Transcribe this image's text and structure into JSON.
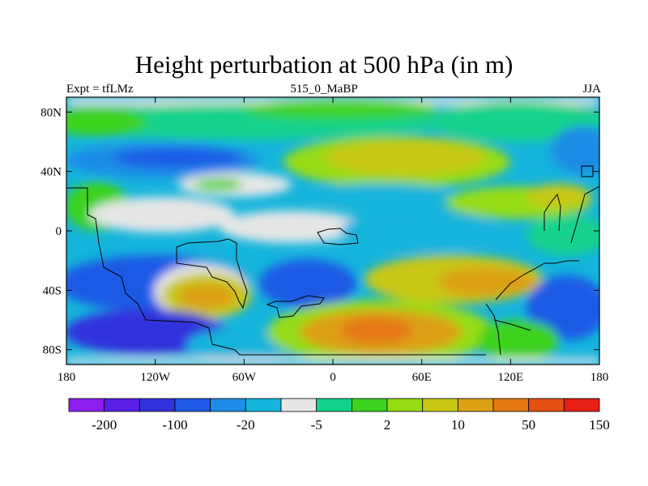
{
  "title": "Height perturbation at 500 hPa (in m)",
  "subtitle_left": "Expt = tfLMz",
  "subtitle_center": "515_0_MaBP",
  "subtitle_right": "JJA",
  "map": {
    "projection": "cylindrical-equidistant",
    "lon_range": [
      -180,
      180
    ],
    "lat_range": [
      -90,
      90
    ],
    "lon_ticks": [
      {
        "value": -180,
        "label": "180"
      },
      {
        "value": -120,
        "label": "120W"
      },
      {
        "value": -60,
        "label": "60W"
      },
      {
        "value": 0,
        "label": "0"
      },
      {
        "value": 60,
        "label": "60E"
      },
      {
        "value": 120,
        "label": "120E"
      },
      {
        "value": 180,
        "label": "180"
      }
    ],
    "lat_ticks": [
      {
        "value": 80,
        "label": "80N"
      },
      {
        "value": 40,
        "label": "40N"
      },
      {
        "value": 0,
        "label": "0"
      },
      {
        "value": -40,
        "label": "40S"
      },
      {
        "value": -80,
        "label": "80S"
      }
    ]
  },
  "colorbar": {
    "colors": [
      "#8c1ef0",
      "#5a1ee6",
      "#3232dc",
      "#1e5ae6",
      "#1e8ce6",
      "#14b4dc",
      "#e6e6e6",
      "#14d28c",
      "#3cd21e",
      "#96dc14",
      "#c8c814",
      "#dca014",
      "#e67814",
      "#e65014",
      "#e61e14"
    ],
    "labels": [
      {
        "boundary": 1,
        "text": "-200"
      },
      {
        "boundary": 3,
        "text": "-100"
      },
      {
        "boundary": 5,
        "text": "-20"
      },
      {
        "boundary": 7,
        "text": "-5"
      },
      {
        "boundary": 9,
        "text": "2"
      },
      {
        "boundary": 11,
        "text": "10"
      },
      {
        "boundary": 13,
        "text": "50"
      },
      {
        "boundary": 15,
        "text": "150"
      }
    ]
  }
}
